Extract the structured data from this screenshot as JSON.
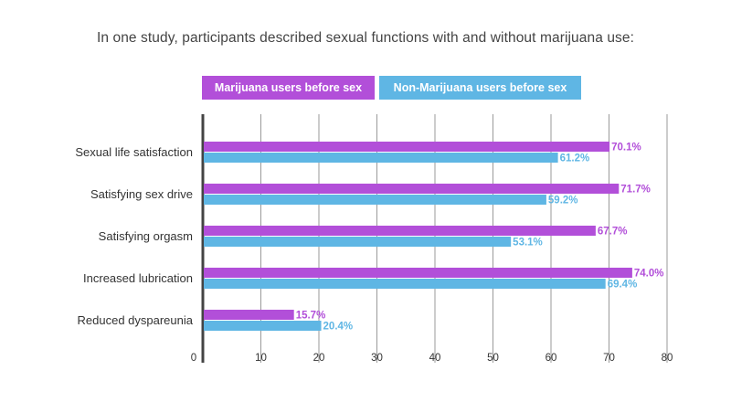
{
  "title": "In one study, participants described sexual functions with and without marijuana use:",
  "legend": [
    {
      "label": "Marijuana users before sex",
      "color": "#b24fd9"
    },
    {
      "label": "Non-Marijuana users before sex",
      "color": "#5fb6e4"
    }
  ],
  "chart_data": {
    "type": "bar",
    "orientation": "horizontal",
    "categories": [
      "Sexual life satisfaction",
      "Satisfying sex drive",
      "Satisfying orgasm",
      "Increased lubrication",
      "Reduced dyspareunia"
    ],
    "series": [
      {
        "name": "Marijuana users before sex",
        "values": [
          70.1,
          71.7,
          67.7,
          74.0,
          15.7
        ],
        "labels": [
          "70.1%",
          "71.7%",
          "67.7%",
          "74.0%",
          "15.7%"
        ],
        "color": "#b24fd9"
      },
      {
        "name": "Non-Marijuana users before sex",
        "values": [
          61.2,
          59.2,
          53.1,
          69.4,
          20.4
        ],
        "labels": [
          "61.2%",
          "59.2%",
          "53.1%",
          "69.4%",
          "20.4%"
        ],
        "color": "#5fb6e4"
      }
    ],
    "x_ticks": [
      "0",
      "10",
      "20",
      "30",
      "40",
      "50",
      "60",
      "70",
      "80"
    ],
    "xlim": [
      0,
      80
    ],
    "grid": true,
    "legend_position": "top"
  }
}
